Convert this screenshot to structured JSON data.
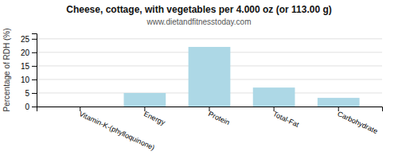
{
  "chart_data": {
    "type": "bar",
    "title": "Cheese, cottage, with vegetables per 4.000 oz (or 113.00 g)",
    "subtitle": "www.dietandfitnesstoday.com",
    "ylabel": "Percentage of RDH (%)",
    "categories": [
      "Vitamin-K-(phylloquinone)",
      "Energy",
      "Protein",
      "Total-Fat",
      "Carbohydrate"
    ],
    "values": [
      0,
      5,
      22,
      7,
      3.2
    ],
    "color": "#add8e6",
    "ylim": [
      0,
      27
    ],
    "yticks": [
      0,
      5,
      10,
      15,
      20,
      25
    ],
    "grid": true
  }
}
